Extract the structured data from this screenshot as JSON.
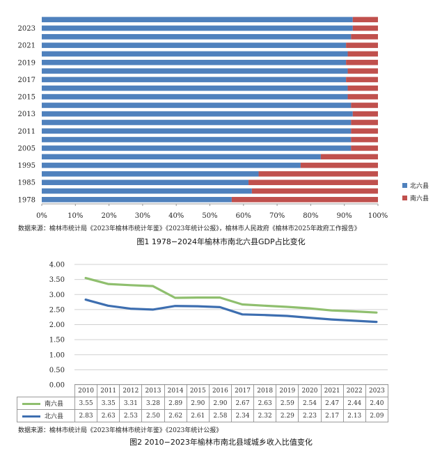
{
  "colors": {
    "north": "#4f81bd",
    "south": "#c0504d",
    "south_line": "#8fbf6e",
    "north_line": "#3d6eb0"
  },
  "charts": [
    {
      "caption": "图1 1978−2024年榆林市南北六县GDP占比变化",
      "source": "数据来源：榆林市统计局《2023年榆林市统计年鉴》《2023年统计公报》，榆林市人民政府《榆林市2025年政府工作报告》"
    },
    {
      "caption": "图2 2010−2023年榆林市南北县域城乡收入比值变化",
      "source": "数据来源：榆林市统计局《2023年榆林市统计年鉴》《2023年统计公报》"
    }
  ],
  "chart_data": [
    {
      "type": "bar",
      "orientation": "horizontal",
      "stacked": "percent",
      "title": "图1 1978−2024年榆林市南北六县GDP占比变化",
      "categories_bottom_to_top": [
        "1978",
        "",
        "1985",
        "",
        "1995",
        "",
        "2005",
        "",
        "2011",
        "",
        "2013",
        "",
        "2015",
        "",
        "2017",
        "",
        "2019",
        "",
        "2021",
        "",
        "2023",
        ""
      ],
      "tick_labels_y": [
        "1978",
        "1985",
        "1995",
        "2005",
        "2011",
        "2013",
        "2015",
        "2017",
        "2019",
        "2021",
        "2023"
      ],
      "tick_labels_x": [
        "0%",
        "10%",
        "20%",
        "30%",
        "40%",
        "50%",
        "60%",
        "70%",
        "80%",
        "90%",
        "100%"
      ],
      "xlim": [
        0,
        100
      ],
      "series": [
        {
          "name": "北六县",
          "values": [
            56.5,
            62.5,
            61.5,
            64.5,
            77,
            83,
            92,
            92,
            92,
            92,
            92.5,
            92,
            91,
            91,
            90.5,
            91,
            90.5,
            91,
            90.5,
            92,
            92.5,
            92.5
          ]
        },
        {
          "name": "南六县",
          "values": [
            43.5,
            37.5,
            38.5,
            35.5,
            23,
            17,
            8,
            8,
            8,
            8,
            7.5,
            8,
            9,
            9,
            9.5,
            9,
            9.5,
            9,
            9.5,
            8,
            7.5,
            7.5
          ]
        }
      ],
      "legend": [
        "北六县",
        "南六县"
      ],
      "legend_position": "right"
    },
    {
      "type": "line",
      "title": "图2 2010−2023年榆林市南北县域城乡收入比值变化",
      "categories": [
        "2010",
        "2011",
        "2012",
        "2013",
        "2014",
        "2015",
        "2016",
        "2017",
        "2018",
        "2019",
        "2020",
        "2021",
        "2022",
        "2023"
      ],
      "yticks": [
        "4.00",
        "3.50",
        "3.00",
        "2.50",
        "2.00",
        "1.50",
        "1.00",
        "0.50",
        "0.00"
      ],
      "ylim": [
        0,
        4
      ],
      "series": [
        {
          "name": "南六县",
          "values": [
            3.55,
            3.35,
            3.31,
            3.28,
            2.89,
            2.9,
            2.9,
            2.67,
            2.63,
            2.59,
            2.54,
            2.47,
            2.44,
            2.4
          ],
          "labels": [
            "3.55",
            "3.35",
            "3.31",
            "3.28",
            "2.89",
            "2.90",
            "2.90",
            "2.67",
            "2.63",
            "2.59",
            "2.54",
            "2.47",
            "2.44",
            "2.40"
          ]
        },
        {
          "name": "北六县",
          "values": [
            2.83,
            2.63,
            2.53,
            2.5,
            2.62,
            2.61,
            2.58,
            2.34,
            2.32,
            2.29,
            2.23,
            2.17,
            2.13,
            2.09
          ],
          "labels": [
            "2.83",
            "2.63",
            "2.53",
            "2.50",
            "2.62",
            "2.61",
            "2.58",
            "2.34",
            "2.32",
            "2.29",
            "2.23",
            "2.17",
            "2.13",
            "2.09"
          ]
        }
      ],
      "data_table": true
    }
  ]
}
